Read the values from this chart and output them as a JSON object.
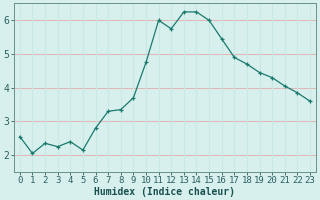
{
  "x": [
    0,
    1,
    2,
    3,
    4,
    5,
    6,
    7,
    8,
    9,
    10,
    11,
    12,
    13,
    14,
    15,
    16,
    17,
    18,
    19,
    20,
    21,
    22,
    23
  ],
  "y": [
    2.55,
    2.05,
    2.35,
    2.25,
    2.4,
    2.15,
    2.8,
    3.3,
    3.35,
    3.7,
    4.75,
    6.0,
    5.75,
    6.25,
    6.25,
    6.0,
    5.45,
    4.9,
    4.7,
    4.45,
    4.3,
    4.05,
    3.85,
    3.6
  ],
  "line_color": "#1a7a6e",
  "marker": "+",
  "marker_color": "#1a7a6e",
  "bg_color": "#d8f0ed",
  "grid_color_h": "#e0b8b8",
  "grid_color_v": "#c8e8e4",
  "xlabel": "Humidex (Indice chaleur)",
  "xlim": [
    -0.5,
    23.5
  ],
  "ylim": [
    1.5,
    6.5
  ],
  "yticks": [
    2,
    3,
    4,
    5,
    6
  ],
  "xticks": [
    0,
    1,
    2,
    3,
    4,
    5,
    6,
    7,
    8,
    9,
    10,
    11,
    12,
    13,
    14,
    15,
    16,
    17,
    18,
    19,
    20,
    21,
    22,
    23
  ],
  "xlabel_fontsize": 7,
  "tick_fontsize": 6.5,
  "tick_color": "#2a6060",
  "spine_color": "#6a9090"
}
